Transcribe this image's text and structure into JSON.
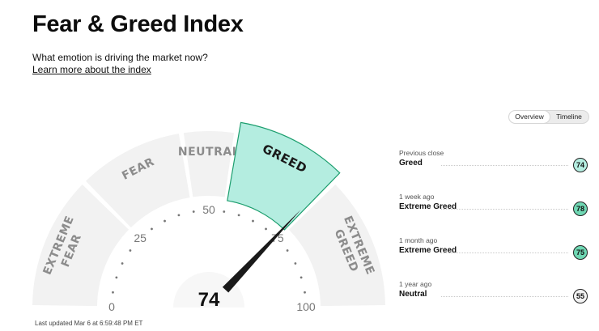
{
  "header": {
    "title": "Fear & Greed Index",
    "subtitle": "What emotion is driving the market now?",
    "learn_more": "Learn more about the index"
  },
  "view_toggle": {
    "options": [
      "Overview",
      "Timeline"
    ],
    "selected": "Overview"
  },
  "gauge": {
    "value": 74,
    "value_label": "74",
    "scale_labels": [
      "0",
      "25",
      "50",
      "75",
      "100"
    ],
    "segments": [
      {
        "name": "EXTREME FEAR",
        "lines": [
          "EXTREME",
          "FEAR"
        ],
        "range": [
          0,
          25
        ]
      },
      {
        "name": "FEAR",
        "lines": [
          "FEAR"
        ],
        "range": [
          25,
          45
        ]
      },
      {
        "name": "NEUTRAL",
        "lines": [
          "NEUTRAL"
        ],
        "range": [
          45,
          55
        ]
      },
      {
        "name": "GREED",
        "lines": [
          "GREED"
        ],
        "range": [
          55,
          75
        ],
        "active": true
      },
      {
        "name": "EXTREME GREED",
        "lines": [
          "EXTREME",
          "GREED"
        ],
        "range": [
          75,
          100
        ]
      }
    ],
    "colors": {
      "segment": "#f2f2f2",
      "active_segment": "#b4ede0",
      "active_border": "#1c9e6e",
      "needle": "#1a1a1a",
      "label": "#8c8c8c"
    }
  },
  "last_updated": "Last updated Mar 6 at 6:59:48 PM ET",
  "history": [
    {
      "label": "Previous close",
      "value": "Greed",
      "score": "74",
      "color": "#b4ede0"
    },
    {
      "label": "1 week ago",
      "value": "Extreme Greed",
      "score": "78",
      "color": "#6fd7b3"
    },
    {
      "label": "1 month ago",
      "value": "Extreme Greed",
      "score": "75",
      "color": "#6fd7b3"
    },
    {
      "label": "1 year ago",
      "value": "Neutral",
      "score": "55",
      "color": "#f2f2f2"
    }
  ]
}
